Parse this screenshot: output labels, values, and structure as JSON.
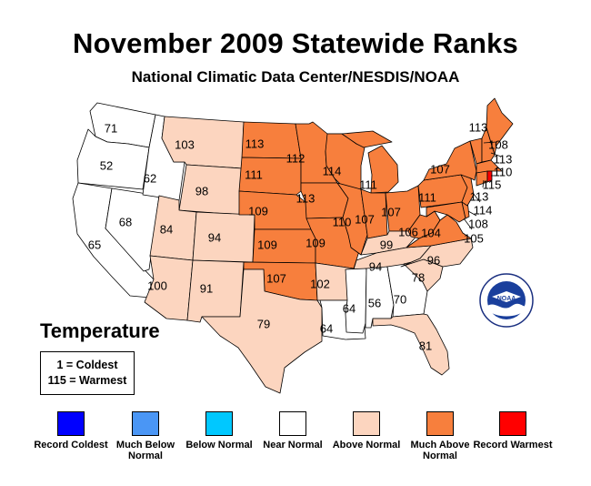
{
  "header": {
    "title": "November 2009 Statewide Ranks",
    "subtitle": "National Climatic Data Center/NESDIS/NOAA"
  },
  "variable": "Temperature",
  "scale": {
    "coldest": "1 = Coldest",
    "warmest": "115 = Warmest"
  },
  "legend": [
    {
      "label": "Record Coldest",
      "color": "#0000ff"
    },
    {
      "label": "Much Below Normal",
      "color": "#4a96f5"
    },
    {
      "label": "Below Normal",
      "color": "#00c8ff"
    },
    {
      "label": "Near Normal",
      "color": "#ffffff"
    },
    {
      "label": "Above Normal",
      "color": "#fcd5bf"
    },
    {
      "label": "Much Above Normal",
      "color": "#f77f3d"
    },
    {
      "label": "Record Warmest",
      "color": "#ff0000"
    }
  ],
  "colors": {
    "near": "#ffffff",
    "above": "#fcd5bf",
    "much_above": "#f77f3d",
    "record_warm": "#ff0000"
  },
  "logo": {
    "name": "noaa-logo",
    "text": "NOAA"
  },
  "states": {
    "WA": {
      "rank": "71",
      "category": "near"
    },
    "OR": {
      "rank": "52",
      "category": "near"
    },
    "CA": {
      "rank": "65",
      "category": "near"
    },
    "ID": {
      "rank": "62",
      "category": "near"
    },
    "NV": {
      "rank": "68",
      "category": "near"
    },
    "MT": {
      "rank": "103",
      "category": "above"
    },
    "WY": {
      "rank": "98",
      "category": "above"
    },
    "UT": {
      "rank": "84",
      "category": "above"
    },
    "CO": {
      "rank": "94",
      "category": "above"
    },
    "AZ": {
      "rank": "100",
      "category": "above"
    },
    "NM": {
      "rank": "91",
      "category": "above"
    },
    "ND": {
      "rank": "113",
      "category": "much_above"
    },
    "SD": {
      "rank": "111",
      "category": "much_above"
    },
    "NE": {
      "rank": "109",
      "category": "much_above"
    },
    "KS": {
      "rank": "109",
      "category": "much_above"
    },
    "OK": {
      "rank": "107",
      "category": "much_above"
    },
    "TX": {
      "rank": "79",
      "category": "above"
    },
    "MN": {
      "rank": "112",
      "category": "much_above"
    },
    "IA": {
      "rank": "113",
      "category": "much_above"
    },
    "MO": {
      "rank": "109",
      "category": "much_above"
    },
    "AR": {
      "rank": "102",
      "category": "above"
    },
    "LA": {
      "rank": "64",
      "category": "near"
    },
    "WI": {
      "rank": "114",
      "category": "much_above"
    },
    "IL": {
      "rank": "110",
      "category": "much_above"
    },
    "MI": {
      "rank": "111",
      "category": "much_above"
    },
    "IN": {
      "rank": "107",
      "category": "much_above"
    },
    "OH": {
      "rank": "107",
      "category": "much_above"
    },
    "KY": {
      "rank": "99",
      "category": "above"
    },
    "TN": {
      "rank": "94",
      "category": "above"
    },
    "MS": {
      "rank": "64",
      "category": "near"
    },
    "AL": {
      "rank": "56",
      "category": "near"
    },
    "GA": {
      "rank": "70",
      "category": "near"
    },
    "FL": {
      "rank": "81",
      "category": "above"
    },
    "SC": {
      "rank": "78",
      "category": "above"
    },
    "NC": {
      "rank": "96",
      "category": "above"
    },
    "VA": {
      "rank": "104",
      "category": "much_above"
    },
    "WV": {
      "rank": "106",
      "category": "much_above"
    },
    "PA": {
      "rank": "111",
      "category": "much_above"
    },
    "NY": {
      "rank": "107",
      "category": "much_above"
    },
    "ME": {
      "rank": "113",
      "category": "much_above"
    },
    "NH": {
      "rank": "113",
      "category": "much_above"
    },
    "VT": {
      "rank": "108",
      "category": "much_above"
    },
    "MA": {
      "rank": "110",
      "category": "much_above"
    },
    "RI": {
      "rank": "115",
      "category": "record_warm"
    },
    "CT": {
      "rank": "113",
      "category": "much_above"
    },
    "NJ": {
      "rank": "114",
      "category": "much_above"
    },
    "DE": {
      "rank": "108",
      "category": "much_above"
    },
    "MD": {
      "rank": "105",
      "category": "much_above"
    }
  }
}
